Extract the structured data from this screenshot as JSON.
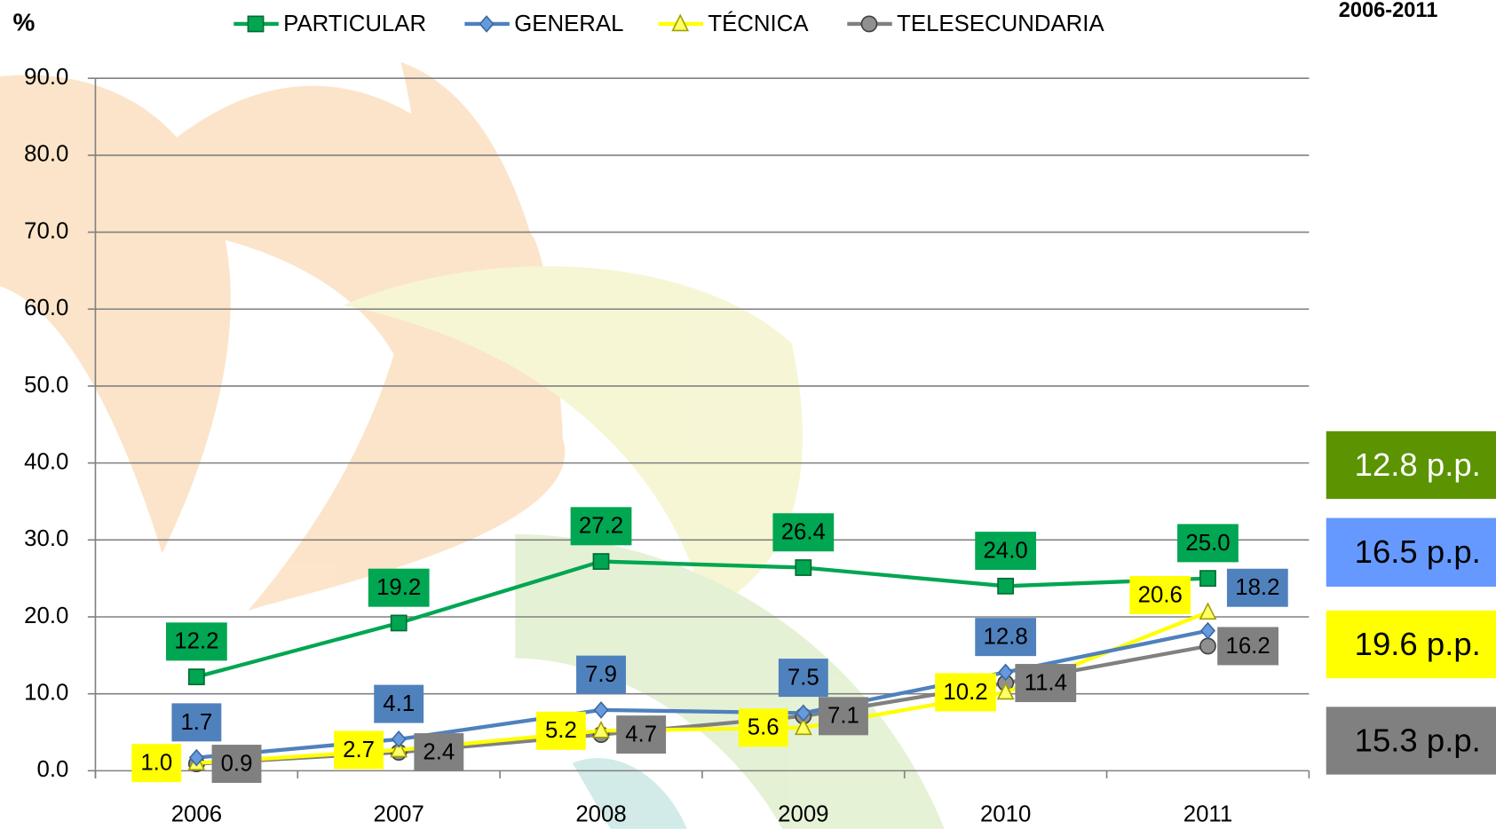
{
  "chart_data": {
    "type": "line",
    "title": "2006-2011",
    "ylabel": "%",
    "categories": [
      "2006",
      "2007",
      "2008",
      "2009",
      "2010",
      "2011"
    ],
    "series": [
      {
        "name": "PARTICULAR",
        "color": "#00a651",
        "values": [
          12.2,
          19.2,
          27.2,
          26.4,
          24.0,
          25.0
        ],
        "value_labels": [
          "12.2",
          "19.2",
          "27.2",
          "26.4",
          "24.0",
          "25.0"
        ]
      },
      {
        "name": "GENERAL",
        "color": "#4f81bd",
        "values": [
          1.7,
          4.1,
          7.9,
          7.5,
          12.8,
          18.2
        ],
        "value_labels": [
          "1.7",
          "4.1",
          "7.9",
          "7.5",
          "12.8",
          "18.2"
        ]
      },
      {
        "name": "TÉCNICA",
        "color": "#ffff00",
        "values": [
          1.0,
          2.7,
          5.2,
          5.6,
          10.2,
          20.6
        ],
        "value_labels": [
          "1.0",
          "2.7",
          "5.2",
          "5.6",
          "10.2",
          "20.6"
        ]
      },
      {
        "name": "TELESECUNDARIA",
        "color": "#808080",
        "values": [
          0.9,
          2.4,
          4.7,
          7.1,
          11.4,
          16.2
        ],
        "value_labels": [
          "0.9",
          "2.4",
          "4.7",
          "7.1",
          "11.4",
          "16.2"
        ]
      }
    ],
    "ylim": [
      0,
      90
    ],
    "yticks": [
      {
        "value": 0,
        "label": "0.0"
      },
      {
        "value": 10,
        "label": "10.0"
      },
      {
        "value": 20,
        "label": "20.0"
      },
      {
        "value": 30,
        "label": "30.0"
      },
      {
        "value": 40,
        "label": "40.0"
      },
      {
        "value": 50,
        "label": "50.0"
      },
      {
        "value": 60,
        "label": "60.0"
      },
      {
        "value": 70,
        "label": "70.0"
      },
      {
        "value": 80,
        "label": "80.0"
      },
      {
        "value": 90,
        "label": "90.0"
      }
    ],
    "grid": true,
    "legend": "top",
    "annotations": [
      {
        "text": "12.8 p.p.",
        "color": "#5b9400"
      },
      {
        "text": "16.5 p.p.",
        "color": "#6699ff"
      },
      {
        "text": "19.6 p.p.",
        "color": "#ffff00"
      },
      {
        "text": "15.3 p.p.",
        "color": "#808080"
      }
    ]
  }
}
